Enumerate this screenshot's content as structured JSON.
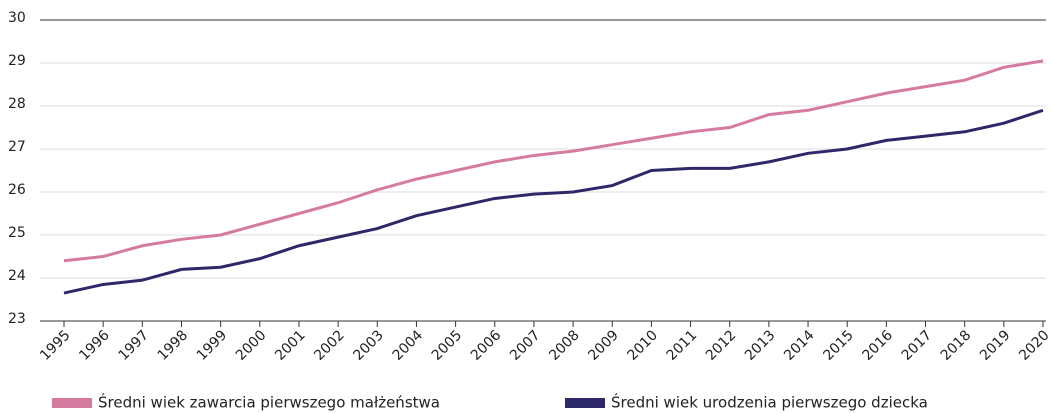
{
  "chart_data": {
    "type": "line",
    "categories": [
      "1995",
      "1996",
      "1997",
      "1998",
      "1999",
      "2000",
      "2001",
      "2002",
      "2003",
      "2004",
      "2005",
      "2006",
      "2007",
      "2008",
      "2009",
      "2010",
      "2011",
      "2012",
      "2013",
      "2014",
      "2015",
      "2016",
      "2017",
      "2018",
      "2019",
      "2020"
    ],
    "series": [
      {
        "name": "Średni wiek zawarcia pierwszego małżeństwa",
        "color": "#d67ba0",
        "values": [
          24.4,
          24.5,
          24.75,
          24.9,
          25.0,
          25.25,
          25.5,
          25.75,
          26.05,
          26.3,
          26.5,
          26.7,
          26.85,
          26.95,
          27.1,
          27.25,
          27.4,
          27.5,
          27.8,
          27.9,
          28.1,
          28.3,
          28.45,
          28.6,
          28.9,
          29.05
        ]
      },
      {
        "name": "Średni wiek urodzenia pierwszego dziecka",
        "color": "#2d2868",
        "values": [
          23.65,
          23.85,
          23.95,
          24.2,
          24.25,
          24.45,
          24.75,
          24.95,
          25.15,
          25.45,
          25.65,
          25.85,
          25.95,
          26.0,
          26.15,
          26.5,
          26.55,
          26.55,
          26.7,
          26.9,
          27.0,
          27.2,
          27.3,
          27.4,
          27.6,
          27.9
        ]
      }
    ],
    "ylim": [
      23,
      30
    ],
    "yticks": [
      23,
      24,
      25,
      26,
      27,
      28,
      29,
      30
    ],
    "grid": true
  }
}
